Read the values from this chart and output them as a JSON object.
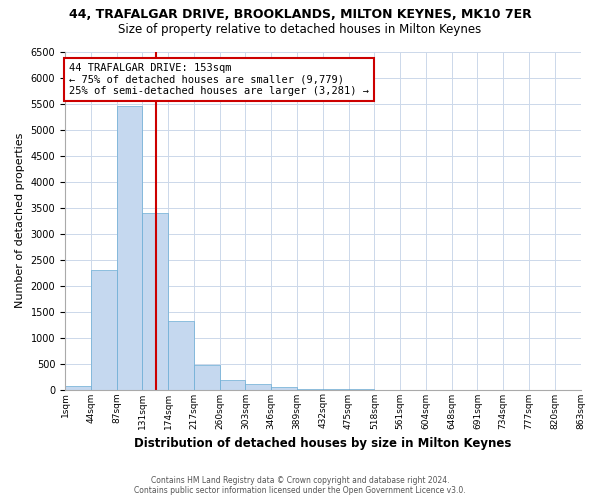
{
  "title": "44, TRAFALGAR DRIVE, BROOKLANDS, MILTON KEYNES, MK10 7ER",
  "subtitle": "Size of property relative to detached houses in Milton Keynes",
  "xlabel": "Distribution of detached houses by size in Milton Keynes",
  "ylabel": "Number of detached properties",
  "n_bins": 20,
  "bar_heights": [
    75,
    2300,
    5450,
    3400,
    1320,
    480,
    185,
    100,
    50,
    10,
    5,
    2,
    0,
    0,
    0,
    0,
    0,
    0,
    0,
    0
  ],
  "bar_color": "#c5d8ef",
  "bar_edgecolor": "#6aacd4",
  "vline_x": 7.0,
  "vline_color": "#cc0000",
  "ylim": [
    0,
    6500
  ],
  "yticks": [
    0,
    500,
    1000,
    1500,
    2000,
    2500,
    3000,
    3500,
    4000,
    4500,
    5000,
    5500,
    6000,
    6500
  ],
  "annotation_title": "44 TRAFALGAR DRIVE: 153sqm",
  "annotation_line1": "← 75% of detached houses are smaller (9,779)",
  "annotation_line2": "25% of semi-detached houses are larger (3,281) →",
  "annotation_box_color": "#ffffff",
  "annotation_box_edgecolor": "#cc0000",
  "footer_line1": "Contains HM Land Registry data © Crown copyright and database right 2024.",
  "footer_line2": "Contains public sector information licensed under the Open Government Licence v3.0.",
  "bg_color": "#ffffff",
  "grid_color": "#ccd8ea",
  "tick_labels": [
    "1sqm",
    "44sqm",
    "87sqm",
    "131sqm",
    "174sqm",
    "217sqm",
    "260sqm",
    "303sqm",
    "346sqm",
    "389sqm",
    "432sqm",
    "475sqm",
    "518sqm",
    "561sqm",
    "604sqm",
    "648sqm",
    "691sqm",
    "734sqm",
    "777sqm",
    "820sqm",
    "863sqm"
  ],
  "title_fontsize": 9,
  "subtitle_fontsize": 8.5,
  "ylabel_fontsize": 8,
  "xlabel_fontsize": 8.5,
  "tick_fontsize": 7,
  "annotation_fontsize": 7.5,
  "footer_fontsize": 5.5
}
